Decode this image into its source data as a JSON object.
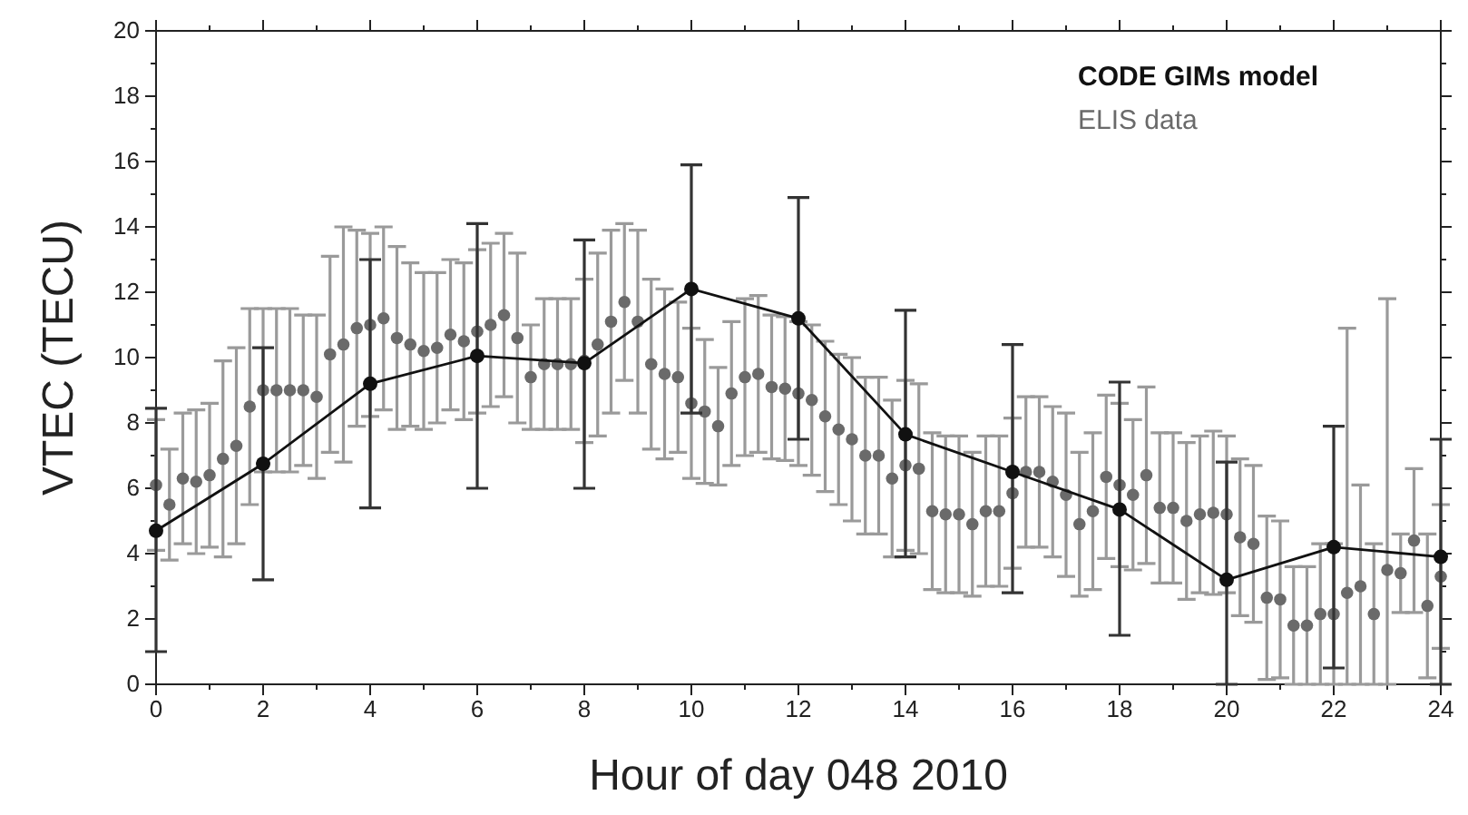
{
  "chart_data": {
    "type": "line",
    "xlabel": "Hour of day 048 2010",
    "ylabel": "VTEC (TECU)",
    "xlim": [
      0,
      24
    ],
    "xticks": [
      0,
      {
        "value": 1,
        "label": null
      },
      2,
      {
        "value": 3,
        "label": null
      },
      4,
      {
        "value": 5,
        "label": null
      },
      6,
      {
        "value": 7,
        "label": null
      },
      8,
      {
        "value": 9,
        "label": null
      },
      10,
      {
        "value": 11,
        "label": null
      },
      12,
      {
        "value": 13,
        "label": null
      },
      14,
      {
        "value": 15,
        "label": null
      },
      16,
      {
        "value": 17,
        "label": null
      },
      18,
      {
        "value": 19,
        "label": null
      },
      20,
      {
        "value": 21,
        "label": null
      },
      22,
      {
        "value": 23,
        "label": null
      },
      24
    ],
    "ylim": [
      0,
      20
    ],
    "yticks": [
      0,
      {
        "value": 1,
        "label": null
      },
      2,
      {
        "value": 3,
        "label": null
      },
      4,
      {
        "value": 5,
        "label": null
      },
      6,
      {
        "value": 7,
        "label": null
      },
      8,
      {
        "value": 9,
        "label": null
      },
      10,
      {
        "value": 11,
        "label": null
      },
      12,
      {
        "value": 13,
        "label": null
      },
      14,
      {
        "value": 15,
        "label": null
      },
      16,
      {
        "value": 17,
        "label": null
      },
      18,
      {
        "value": 19,
        "label": null
      },
      20
    ],
    "grid": false,
    "legend": "top right",
    "marker": "circle",
    "line_style": "solid",
    "series": [
      {
        "name": "ELIS data",
        "type": "scatter",
        "color": "#6a6a6a",
        "x": [
          0,
          0.25,
          0.5,
          0.75,
          1,
          1.25,
          1.5,
          1.75,
          2,
          2.25,
          2.5,
          2.75,
          3,
          3.25,
          3.5,
          3.75,
          4,
          4.25,
          4.5,
          4.75,
          5,
          5.25,
          5.5,
          5.75,
          6,
          6.25,
          6.5,
          6.75,
          7,
          7.25,
          7.5,
          7.75,
          8,
          8.25,
          8.5,
          8.75,
          9,
          9.25,
          9.5,
          9.75,
          10,
          10.25,
          10.5,
          10.75,
          11,
          11.25,
          11.5,
          11.75,
          12,
          12.25,
          12.5,
          12.75,
          13,
          13.25,
          13.5,
          13.75,
          14,
          14.25,
          14.5,
          14.75,
          15,
          15.25,
          15.5,
          15.75,
          16,
          16.25,
          16.5,
          16.75,
          17,
          17.25,
          17.5,
          17.75,
          18,
          18.25,
          18.5,
          18.75,
          19,
          19.25,
          19.5,
          19.75,
          20,
          20.25,
          20.5,
          20.75,
          21,
          21.25,
          21.5,
          21.75,
          22,
          22.25,
          22.5,
          22.75,
          23,
          23.25,
          23.5,
          23.75,
          24
        ],
        "values": [
          6.1,
          5.5,
          6.3,
          6.2,
          6.4,
          6.9,
          7.3,
          8.5,
          9.0,
          9.0,
          9.0,
          9.0,
          8.8,
          10.1,
          10.4,
          10.9,
          11.0,
          11.2,
          10.6,
          10.4,
          10.2,
          10.3,
          10.7,
          10.5,
          10.8,
          11.0,
          11.3,
          10.6,
          9.4,
          9.8,
          9.8,
          9.8,
          9.9,
          10.4,
          11.1,
          11.7,
          11.1,
          9.8,
          9.5,
          9.4,
          8.6,
          8.35,
          7.9,
          8.9,
          9.4,
          9.5,
          9.1,
          9.05,
          8.9,
          8.7,
          8.2,
          7.8,
          7.5,
          7.0,
          7.0,
          6.3,
          6.7,
          6.6,
          5.3,
          5.2,
          5.2,
          4.9,
          5.3,
          5.3,
          5.85,
          6.5,
          6.5,
          6.2,
          5.8,
          4.9,
          5.3,
          6.35,
          6.1,
          5.8,
          6.4,
          5.4,
          5.4,
          5.0,
          5.2,
          5.25,
          5.2,
          4.5,
          4.3,
          2.65,
          2.6,
          1.8,
          1.8,
          2.15,
          2.15,
          2.8,
          3.0,
          2.15,
          3.5,
          3.4,
          4.4,
          2.4,
          3.3
        ],
        "errors": [
          2.0,
          1.7,
          2.0,
          2.2,
          2.2,
          3.0,
          3.0,
          3.0,
          2.5,
          2.5,
          2.5,
          2.3,
          2.5,
          3.0,
          3.6,
          3.0,
          2.8,
          2.8,
          2.8,
          2.5,
          2.4,
          2.3,
          2.3,
          2.4,
          2.5,
          2.5,
          2.5,
          2.6,
          1.6,
          2.0,
          2.0,
          2.0,
          2.5,
          2.8,
          2.8,
          2.4,
          2.8,
          2.6,
          2.6,
          2.3,
          2.3,
          2.2,
          1.8,
          2.2,
          2.4,
          2.4,
          2.2,
          2.2,
          2.2,
          2.3,
          2.3,
          2.3,
          2.5,
          2.4,
          2.4,
          2.4,
          2.6,
          2.6,
          2.4,
          2.4,
          2.4,
          2.2,
          2.3,
          2.3,
          2.3,
          2.3,
          2.3,
          2.3,
          2.5,
          2.2,
          2.4,
          2.5,
          2.5,
          2.3,
          2.7,
          2.3,
          2.3,
          2.4,
          2.4,
          2.5,
          2.4,
          2.4,
          2.4,
          2.5,
          2.4,
          1.8,
          1.8,
          2.15,
          2.15,
          [
            0,
            10.9
          ],
          [
            0,
            6.1
          ],
          2.15,
          [
            0,
            11.8
          ],
          1.2,
          2.2,
          2.2,
          2.2
        ]
      },
      {
        "name": "CODE GIMs model",
        "color": "#111111",
        "x": [
          0,
          2,
          4,
          6,
          8,
          10,
          12,
          14,
          16,
          18,
          20,
          22,
          24
        ],
        "values": [
          4.7,
          6.75,
          9.2,
          10.05,
          9.83,
          12.1,
          11.2,
          7.65,
          6.5,
          5.35,
          3.2,
          4.2,
          3.9
        ],
        "errors": [
          [
            1.0,
            8.45
          ],
          [
            3.2,
            10.3
          ],
          [
            5.4,
            13.0
          ],
          [
            6.0,
            14.1
          ],
          [
            6.0,
            13.6
          ],
          [
            8.3,
            15.9
          ],
          [
            7.5,
            14.9
          ],
          [
            3.9,
            11.45
          ],
          [
            2.8,
            10.4
          ],
          [
            1.5,
            9.25
          ],
          [
            0,
            6.8
          ],
          [
            0.5,
            7.9
          ],
          [
            0,
            7.5
          ]
        ]
      }
    ]
  }
}
